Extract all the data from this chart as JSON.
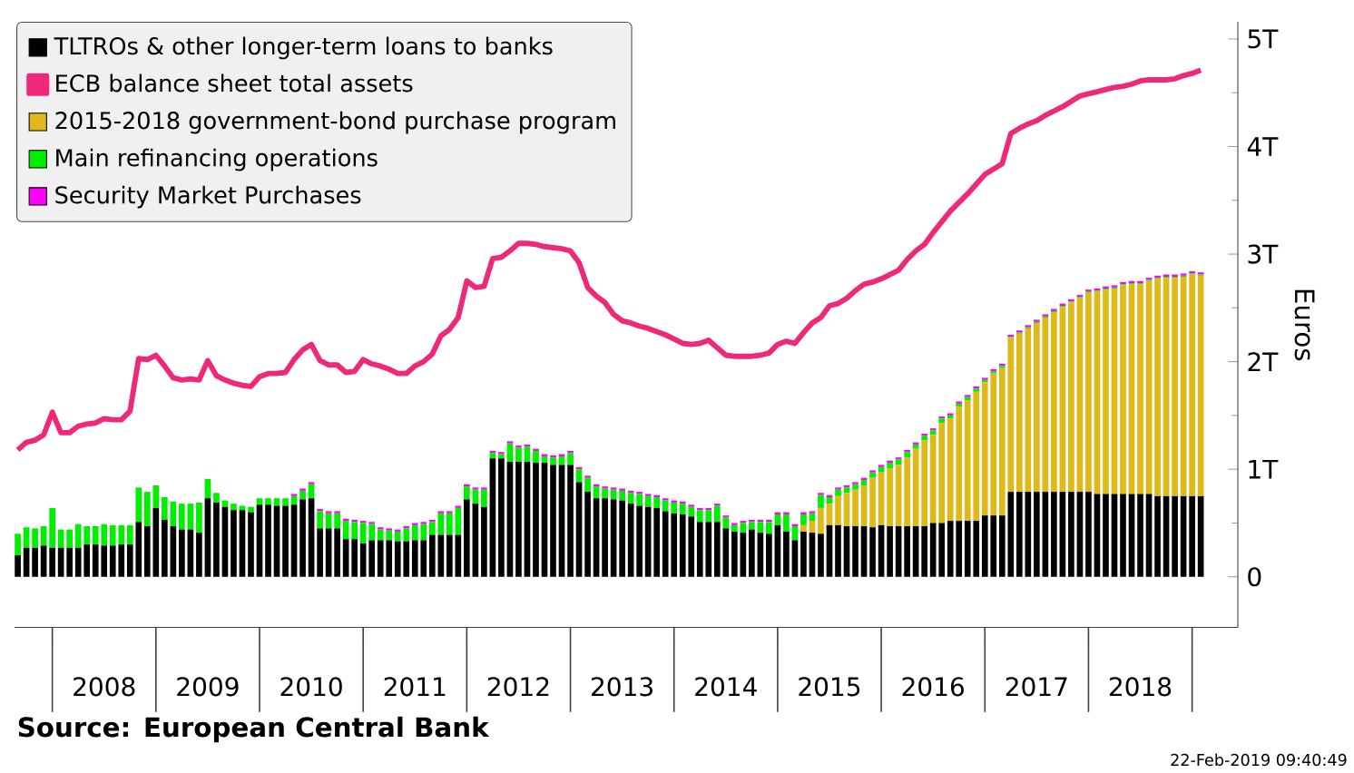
{
  "chart_data": {
    "type": "bar",
    "stacked": true,
    "x": [
      "2007-09",
      "2007-10",
      "2007-11",
      "2007-12",
      "2008-01",
      "2008-02",
      "2008-03",
      "2008-04",
      "2008-05",
      "2008-06",
      "2008-07",
      "2008-08",
      "2008-09",
      "2008-10",
      "2008-11",
      "2008-12",
      "2009-01",
      "2009-02",
      "2009-03",
      "2009-04",
      "2009-05",
      "2009-06",
      "2009-07",
      "2009-08",
      "2009-09",
      "2009-10",
      "2009-11",
      "2009-12",
      "2010-01",
      "2010-02",
      "2010-03",
      "2010-04",
      "2010-05",
      "2010-06",
      "2010-07",
      "2010-08",
      "2010-09",
      "2010-10",
      "2010-11",
      "2010-12",
      "2011-01",
      "2011-02",
      "2011-03",
      "2011-04",
      "2011-05",
      "2011-06",
      "2011-07",
      "2011-08",
      "2011-09",
      "2011-10",
      "2011-11",
      "2011-12",
      "2012-01",
      "2012-02",
      "2012-03",
      "2012-04",
      "2012-05",
      "2012-06",
      "2012-07",
      "2012-08",
      "2012-09",
      "2012-10",
      "2012-11",
      "2012-12",
      "2013-01",
      "2013-02",
      "2013-03",
      "2013-04",
      "2013-05",
      "2013-06",
      "2013-07",
      "2013-08",
      "2013-09",
      "2013-10",
      "2013-11",
      "2013-12",
      "2014-01",
      "2014-02",
      "2014-03",
      "2014-04",
      "2014-05",
      "2014-06",
      "2014-07",
      "2014-08",
      "2014-09",
      "2014-10",
      "2014-11",
      "2014-12",
      "2015-01",
      "2015-02",
      "2015-03",
      "2015-04",
      "2015-05",
      "2015-06",
      "2015-07",
      "2015-08",
      "2015-09",
      "2015-10",
      "2015-11",
      "2015-12",
      "2016-01",
      "2016-02",
      "2016-03",
      "2016-04",
      "2016-05",
      "2016-06",
      "2016-07",
      "2016-08",
      "2016-09",
      "2016-10",
      "2016-11",
      "2016-12",
      "2017-01",
      "2017-02",
      "2017-03",
      "2017-04",
      "2017-05",
      "2017-06",
      "2017-07",
      "2017-08",
      "2017-09",
      "2017-10",
      "2017-11",
      "2017-12",
      "2018-01",
      "2018-02",
      "2018-03",
      "2018-04",
      "2018-05",
      "2018-06",
      "2018-07",
      "2018-08",
      "2018-09",
      "2018-10",
      "2018-11",
      "2018-12",
      "2019-01",
      "2019-02"
    ],
    "series": [
      {
        "name": "TLTROs & other longer-term loans to banks",
        "color": "#000000",
        "values": [
          0.2,
          0.27,
          0.27,
          0.29,
          0.27,
          0.27,
          0.27,
          0.27,
          0.3,
          0.3,
          0.29,
          0.29,
          0.3,
          0.3,
          0.51,
          0.47,
          0.64,
          0.53,
          0.47,
          0.44,
          0.44,
          0.41,
          0.73,
          0.69,
          0.65,
          0.62,
          0.62,
          0.6,
          0.67,
          0.67,
          0.66,
          0.66,
          0.67,
          0.72,
          0.73,
          0.45,
          0.45,
          0.45,
          0.35,
          0.35,
          0.31,
          0.34,
          0.34,
          0.34,
          0.33,
          0.33,
          0.34,
          0.34,
          0.39,
          0.39,
          0.39,
          0.39,
          0.72,
          0.68,
          0.65,
          1.1,
          1.1,
          1.07,
          1.07,
          1.07,
          1.06,
          1.06,
          1.04,
          1.04,
          1.04,
          0.88,
          0.79,
          0.73,
          0.73,
          0.72,
          0.71,
          0.68,
          0.66,
          0.65,
          0.64,
          0.61,
          0.59,
          0.58,
          0.56,
          0.51,
          0.51,
          0.51,
          0.45,
          0.42,
          0.41,
          0.44,
          0.41,
          0.4,
          0.48,
          0.42,
          0.34,
          0.42,
          0.41,
          0.4,
          0.48,
          0.48,
          0.47,
          0.47,
          0.47,
          0.46,
          0.48,
          0.47,
          0.47,
          0.47,
          0.47,
          0.47,
          0.5,
          0.5,
          0.52,
          0.52,
          0.52,
          0.52,
          0.57,
          0.57,
          0.57,
          0.79,
          0.79,
          0.79,
          0.79,
          0.79,
          0.79,
          0.79,
          0.79,
          0.79,
          0.79,
          0.77,
          0.77,
          0.77,
          0.77,
          0.77,
          0.77,
          0.77,
          0.75,
          0.75,
          0.75,
          0.75,
          0.75,
          0.75
        ]
      },
      {
        "name": "ECB balance sheet total assets",
        "type": "line",
        "color": "#f0287a",
        "values": [
          1.18,
          1.25,
          1.27,
          1.32,
          1.53,
          1.34,
          1.34,
          1.4,
          1.42,
          1.43,
          1.47,
          1.46,
          1.46,
          1.54,
          2.03,
          2.02,
          2.06,
          1.96,
          1.85,
          1.83,
          1.84,
          1.83,
          2.01,
          1.87,
          1.83,
          1.8,
          1.78,
          1.77,
          1.86,
          1.89,
          1.89,
          1.9,
          2.02,
          2.11,
          2.16,
          2.01,
          1.97,
          1.97,
          1.9,
          1.91,
          2.02,
          1.98,
          1.96,
          1.93,
          1.89,
          1.89,
          1.96,
          2.0,
          2.07,
          2.24,
          2.3,
          2.41,
          2.75,
          2.69,
          2.7,
          2.96,
          2.97,
          3.03,
          3.1,
          3.1,
          3.09,
          3.07,
          3.06,
          3.05,
          3.03,
          2.92,
          2.69,
          2.61,
          2.55,
          2.44,
          2.38,
          2.36,
          2.33,
          2.31,
          2.28,
          2.25,
          2.21,
          2.17,
          2.16,
          2.17,
          2.2,
          2.13,
          2.06,
          2.05,
          2.05,
          2.05,
          2.06,
          2.08,
          2.16,
          2.19,
          2.17,
          2.27,
          2.36,
          2.41,
          2.52,
          2.54,
          2.59,
          2.66,
          2.72,
          2.74,
          2.77,
          2.81,
          2.85,
          2.95,
          3.03,
          3.09,
          3.2,
          3.3,
          3.4,
          3.48,
          3.56,
          3.65,
          3.74,
          3.79,
          3.84,
          4.12,
          4.17,
          4.21,
          4.24,
          4.29,
          4.33,
          4.37,
          4.42,
          4.47,
          4.49,
          4.51,
          4.53,
          4.55,
          4.56,
          4.58,
          4.61,
          4.62,
          4.62,
          4.62,
          4.63,
          4.66,
          4.68,
          4.71
        ]
      },
      {
        "name": "2015-2018 government-bond purchase program",
        "color": "#e0b818",
        "values": [
          0,
          0,
          0,
          0,
          0,
          0,
          0,
          0,
          0,
          0,
          0,
          0,
          0,
          0,
          0,
          0,
          0,
          0,
          0,
          0,
          0,
          0,
          0,
          0,
          0,
          0,
          0,
          0,
          0,
          0,
          0,
          0,
          0,
          0,
          0,
          0,
          0,
          0,
          0,
          0,
          0,
          0,
          0,
          0,
          0,
          0,
          0,
          0,
          0,
          0,
          0,
          0,
          0,
          0,
          0,
          0,
          0,
          0,
          0,
          0,
          0,
          0,
          0,
          0,
          0,
          0,
          0,
          0,
          0,
          0,
          0,
          0,
          0,
          0,
          0,
          0,
          0,
          0,
          0,
          0,
          0,
          0,
          0,
          0,
          0,
          0,
          0,
          0,
          0,
          0,
          0,
          0.06,
          0.11,
          0.24,
          0.2,
          0.27,
          0.31,
          0.34,
          0.38,
          0.46,
          0.49,
          0.54,
          0.57,
          0.64,
          0.72,
          0.8,
          0.82,
          0.93,
          0.95,
          1.06,
          1.12,
          1.2,
          1.24,
          1.32,
          1.37,
          1.43,
          1.47,
          1.52,
          1.57,
          1.62,
          1.67,
          1.72,
          1.76,
          1.8,
          1.85,
          1.88,
          1.9,
          1.91,
          1.94,
          1.95,
          1.95,
          1.98,
          2.02,
          2.03,
          2.03,
          2.04,
          2.06,
          2.05
        ]
      },
      {
        "name": "Main refinancing operations",
        "color": "#00ee00",
        "values": [
          0.2,
          0.19,
          0.18,
          0.18,
          0.37,
          0.17,
          0.17,
          0.22,
          0.17,
          0.17,
          0.2,
          0.19,
          0.18,
          0.18,
          0.32,
          0.32,
          0.21,
          0.21,
          0.23,
          0.24,
          0.24,
          0.28,
          0.18,
          0.09,
          0.06,
          0.06,
          0.04,
          0.05,
          0.06,
          0.06,
          0.07,
          0.07,
          0.08,
          0.08,
          0.13,
          0.16,
          0.14,
          0.14,
          0.17,
          0.16,
          0.19,
          0.15,
          0.1,
          0.09,
          0.09,
          0.12,
          0.14,
          0.15,
          0.12,
          0.2,
          0.2,
          0.25,
          0.12,
          0.13,
          0.16,
          0.05,
          0.04,
          0.17,
          0.13,
          0.14,
          0.11,
          0.06,
          0.07,
          0.08,
          0.11,
          0.12,
          0.13,
          0.11,
          0.09,
          0.09,
          0.09,
          0.1,
          0.11,
          0.1,
          0.1,
          0.1,
          0.1,
          0.1,
          0.09,
          0.11,
          0.11,
          0.15,
          0.1,
          0.06,
          0.09,
          0.07,
          0.1,
          0.11,
          0.1,
          0.16,
          0.13,
          0.1,
          0.07,
          0.12,
          0.06,
          0.06,
          0.05,
          0.05,
          0.05,
          0.05,
          0.05,
          0.05,
          0.05,
          0.05,
          0.04,
          0.04,
          0.04,
          0.04,
          0.03,
          0.03,
          0.03,
          0.03,
          0.02,
          0.02,
          0.02,
          0.01,
          0.01,
          0.01,
          0.01,
          0.01,
          0.01,
          0.01,
          0.01,
          0.01,
          0.01,
          0.01,
          0.01,
          0.01,
          0.01,
          0.01,
          0.01,
          0.01,
          0.01,
          0.01,
          0.01,
          0.01,
          0.01,
          0.01
        ]
      },
      {
        "name": "Security Market Purchases",
        "color": "#ff00ff",
        "values": [
          0,
          0,
          0,
          0,
          0,
          0,
          0,
          0,
          0,
          0,
          0,
          0,
          0,
          0,
          0,
          0,
          0,
          0,
          0,
          0,
          0,
          0,
          0,
          0,
          0,
          0,
          0,
          0,
          0,
          0,
          0,
          0,
          0.02,
          0.02,
          0.02,
          0.02,
          0.02,
          0.02,
          0.02,
          0.02,
          0.02,
          0.02,
          0.02,
          0.02,
          0.02,
          0.02,
          0.02,
          0.02,
          0.02,
          0.02,
          0.02,
          0.02,
          0.02,
          0.02,
          0.02,
          0.02,
          0.02,
          0.02,
          0.02,
          0.02,
          0.02,
          0.02,
          0.02,
          0.02,
          0.02,
          0.02,
          0.02,
          0.02,
          0.02,
          0.02,
          0.02,
          0.02,
          0.02,
          0.02,
          0.02,
          0.02,
          0.02,
          0.02,
          0.02,
          0.02,
          0.02,
          0.02,
          0.02,
          0.02,
          0.02,
          0.02,
          0.02,
          0.02,
          0.02,
          0.02,
          0.02,
          0.02,
          0.02,
          0.02,
          0.02,
          0.02,
          0.02,
          0.02,
          0.02,
          0.02,
          0.02,
          0.02,
          0.02,
          0.02,
          0.02,
          0.02,
          0.02,
          0.02,
          0.02,
          0.02,
          0.02,
          0.02,
          0.02,
          0.02,
          0.02,
          0.02,
          0.02,
          0.02,
          0.02,
          0.02,
          0.02,
          0.02,
          0.02,
          0.02,
          0.02,
          0.02,
          0.02,
          0.02,
          0.02,
          0.02,
          0.02,
          0.02,
          0.02,
          0.02,
          0.02,
          0.02,
          0.02,
          0.02
        ]
      }
    ],
    "xlim": [
      "2007-08-20",
      "2019-06-10"
    ],
    "xticks": [
      {
        "value": "2008-01-01",
        "label": null
      },
      {
        "value": "2009-01-01",
        "label": null
      },
      {
        "value": "2010-01-01",
        "label": null
      },
      {
        "value": "2011-01-01",
        "label": null
      },
      {
        "value": "2012-01-01",
        "label": null
      },
      {
        "value": "2013-01-01",
        "label": null
      },
      {
        "value": "2014-01-01",
        "label": null
      },
      {
        "value": "2015-01-01",
        "label": null
      },
      {
        "value": "2016-01-01",
        "label": null
      },
      {
        "value": "2017-01-01",
        "label": null
      },
      {
        "value": "2018-01-01",
        "label": null
      },
      {
        "value": "2019-01-01",
        "label": null
      },
      {
        "value": "2008-07-01",
        "label": "2008"
      },
      {
        "value": "2009-07-01",
        "label": "2009"
      },
      {
        "value": "2010-07-01",
        "label": "2010"
      },
      {
        "value": "2011-07-01",
        "label": "2011"
      },
      {
        "value": "2012-07-01",
        "label": "2012"
      },
      {
        "value": "2013-07-01",
        "label": "2013"
      },
      {
        "value": "2014-07-01",
        "label": "2014"
      },
      {
        "value": "2015-07-01",
        "label": "2015"
      },
      {
        "value": "2016-07-01",
        "label": "2016"
      },
      {
        "value": "2017-07-01",
        "label": "2017"
      },
      {
        "value": "2018-07-01",
        "label": "2018"
      }
    ],
    "ylim": [
      -0.47,
      5.16
    ],
    "yticks": [
      0,
      {
        "value": 1,
        "label": "1T"
      },
      {
        "value": 2,
        "label": "2T"
      },
      {
        "value": 3,
        "label": "3T"
      },
      {
        "value": 4,
        "label": "4T"
      },
      {
        "value": 5,
        "label": "5T"
      },
      {
        "value": 0.5,
        "label": null
      },
      {
        "value": 1.5,
        "label": null
      },
      {
        "value": 2.5,
        "label": null
      },
      {
        "value": 3.5,
        "label": null
      },
      {
        "value": 4.5,
        "label": null
      }
    ],
    "ylabel": "Euros",
    "legend": "top left",
    "annotations": [
      "Source: European Central Bank",
      "22-Feb-2019 09:40:49"
    ]
  }
}
